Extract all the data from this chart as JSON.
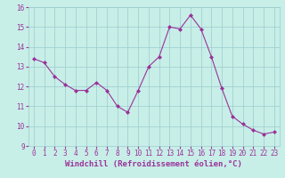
{
  "x": [
    0,
    1,
    2,
    3,
    4,
    5,
    6,
    7,
    8,
    9,
    10,
    11,
    12,
    13,
    14,
    15,
    16,
    17,
    18,
    19,
    20,
    21,
    22,
    23
  ],
  "y": [
    13.4,
    13.2,
    12.5,
    12.1,
    11.8,
    11.8,
    12.2,
    11.8,
    11.0,
    10.7,
    11.8,
    13.0,
    13.5,
    15.0,
    14.9,
    15.6,
    14.9,
    13.5,
    11.9,
    10.5,
    10.1,
    9.8,
    9.6,
    9.7
  ],
  "line_color": "#993399",
  "marker_color": "#993399",
  "bg_color": "#c8eee8",
  "grid_color": "#99cccc",
  "xlabel": "Windchill (Refroidissement éolien,°C)",
  "ylim": [
    9,
    16
  ],
  "xlim": [
    -0.5,
    23.5
  ],
  "yticks": [
    9,
    10,
    11,
    12,
    13,
    14,
    15,
    16
  ],
  "xticks": [
    0,
    1,
    2,
    3,
    4,
    5,
    6,
    7,
    8,
    9,
    10,
    11,
    12,
    13,
    14,
    15,
    16,
    17,
    18,
    19,
    20,
    21,
    22,
    23
  ],
  "tick_color": "#993399",
  "label_fontsize": 6.5,
  "tick_fontsize": 5.5
}
